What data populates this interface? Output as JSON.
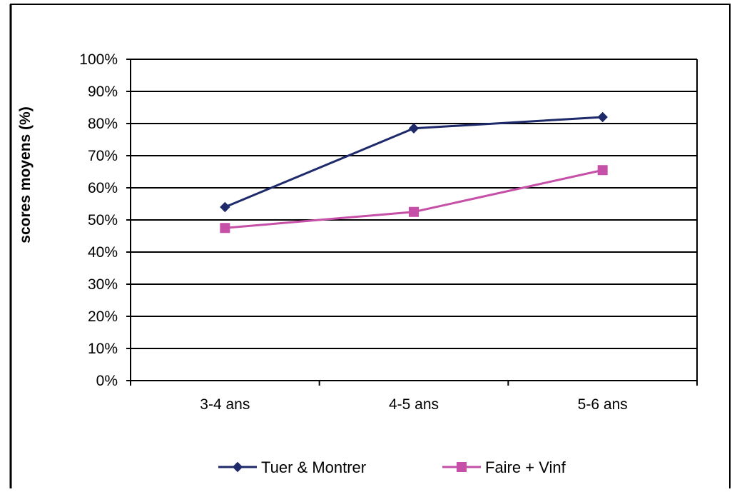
{
  "chart_data": {
    "type": "line",
    "categories": [
      "3-4 ans",
      "4-5 ans",
      "5-6 ans"
    ],
    "series": [
      {
        "name": "Tuer & Montrer",
        "values": [
          54,
          78.5,
          82
        ],
        "color": "#1f2a6b",
        "marker": "diamond"
      },
      {
        "name": "Faire + Vinf",
        "values": [
          47.5,
          52.5,
          65.5
        ],
        "color": "#c64fa7",
        "marker": "square"
      }
    ],
    "ylabel": "scores moyens  (%)",
    "xlabel": "",
    "ylim": [
      0,
      100
    ],
    "yticks": [
      "0%",
      "10%",
      "20%",
      "30%",
      "40%",
      "50%",
      "60%",
      "70%",
      "80%",
      "90%",
      "100%"
    ],
    "grid": true,
    "legend": "bottom"
  }
}
